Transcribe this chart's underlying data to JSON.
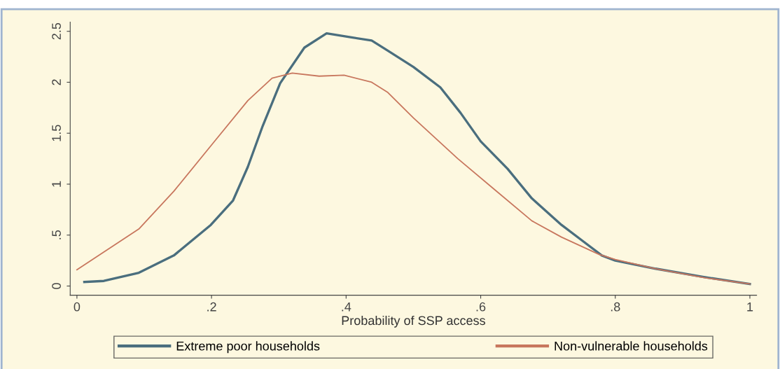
{
  "chart_data": {
    "type": "line",
    "xlabel": "Probability of SSP access",
    "xlim": [
      -0.01,
      1.01
    ],
    "ylim": [
      -0.09,
      2.59
    ],
    "xticks": [
      {
        "value": 0,
        "label": "0"
      },
      {
        "value": 0.2,
        "label": ".2"
      },
      {
        "value": 0.4,
        "label": ".4"
      },
      {
        "value": 0.6,
        "label": ".6"
      },
      {
        "value": 0.8,
        "label": ".8"
      },
      {
        "value": 1,
        "label": "1"
      }
    ],
    "yticks": [
      {
        "value": 0,
        "label": "0"
      },
      {
        "value": 0.5,
        "label": ".5"
      },
      {
        "value": 1,
        "label": "1"
      },
      {
        "value": 1.5,
        "label": "1.5"
      },
      {
        "value": 2,
        "label": "2"
      },
      {
        "value": 2.5,
        "label": "2.5"
      }
    ],
    "grid": false,
    "legend": "bottom",
    "line_style": "solid",
    "marker": "none",
    "series": [
      {
        "name": "Extreme poor households",
        "color": "#4a6e7e",
        "x": [
          0.011,
          0.04,
          0.092,
          0.144,
          0.199,
          0.232,
          0.254,
          0.276,
          0.302,
          0.338,
          0.371,
          0.408,
          0.438,
          0.462,
          0.5,
          0.54,
          0.57,
          0.6,
          0.64,
          0.676,
          0.72,
          0.75,
          0.78,
          0.8,
          0.86,
          0.93,
          1.0
        ],
        "values": [
          0.04,
          0.05,
          0.13,
          0.3,
          0.6,
          0.84,
          1.17,
          1.57,
          1.99,
          2.34,
          2.48,
          2.44,
          2.41,
          2.31,
          2.15,
          1.95,
          1.7,
          1.42,
          1.15,
          0.86,
          0.6,
          0.45,
          0.3,
          0.25,
          0.17,
          0.09,
          0.02
        ]
      },
      {
        "name": "Non-vulnerable households",
        "color": "#c8775e",
        "x": [
          0.0,
          0.092,
          0.144,
          0.202,
          0.254,
          0.29,
          0.32,
          0.36,
          0.397,
          0.438,
          0.462,
          0.5,
          0.566,
          0.62,
          0.676,
          0.72,
          0.776,
          0.8,
          0.86,
          0.934,
          1.0
        ],
        "values": [
          0.16,
          0.56,
          0.93,
          1.4,
          1.82,
          2.04,
          2.09,
          2.06,
          2.07,
          2.0,
          1.9,
          1.65,
          1.25,
          0.95,
          0.64,
          0.48,
          0.31,
          0.26,
          0.17,
          0.08,
          0.02
        ]
      }
    ]
  }
}
